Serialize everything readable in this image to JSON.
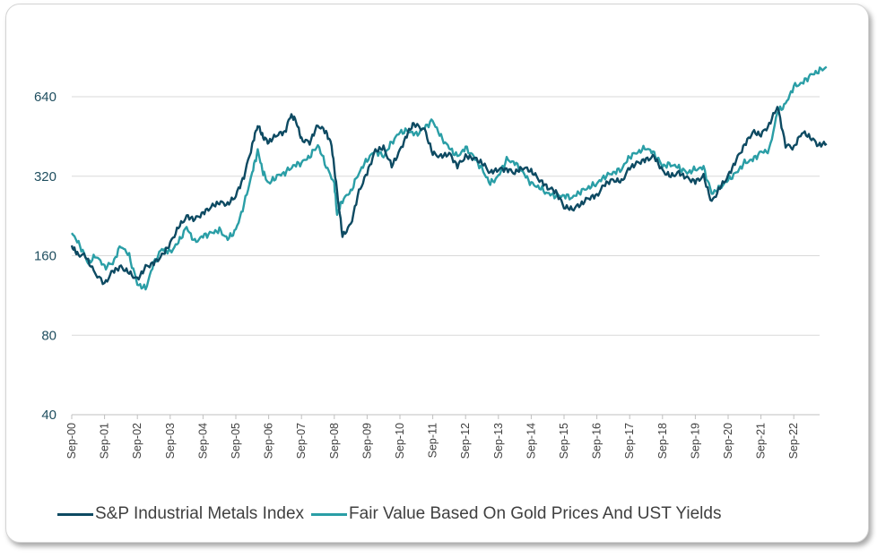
{
  "colors": {
    "series1": "#0d4a62",
    "series2": "#2a9ea6",
    "axis_text": "#1f4e5f",
    "grid": "#d9d9d9"
  },
  "chart_data": {
    "type": "line",
    "title": "",
    "xlabel": "",
    "ylabel": "",
    "y_scale": "log2",
    "ylim": [
      40,
      900
    ],
    "y_ticks": [
      "40",
      "80",
      "160",
      "320",
      "640"
    ],
    "y_tick_values": [
      40,
      80,
      160,
      320,
      640
    ],
    "x_ticks": [
      "Sep-00",
      "Sep-01",
      "Sep-02",
      "Sep-03",
      "Sep-04",
      "Sep-05",
      "Sep-06",
      "Sep-07",
      "Sep-08",
      "Sep-09",
      "Sep-10",
      "Sep-11",
      "Sep-12",
      "Sep-13",
      "Sep-14",
      "Sep-15",
      "Sep-16",
      "Sep-17",
      "Sep-18",
      "Sep-19",
      "Sep-20",
      "Sep-21",
      "Sep-22"
    ],
    "grid": "horizontal",
    "legend_position": "bottom",
    "series": [
      {
        "name": "S&P Industrial Metals Index",
        "points": [
          [
            "2000-09",
            175
          ],
          [
            "2000-11",
            162
          ],
          [
            "2001-02",
            160
          ],
          [
            "2001-05",
            140
          ],
          [
            "2001-09",
            125
          ],
          [
            "2001-12",
            140
          ],
          [
            "2002-03",
            145
          ],
          [
            "2002-06",
            138
          ],
          [
            "2002-09",
            130
          ],
          [
            "2002-12",
            145
          ],
          [
            "2003-03",
            150
          ],
          [
            "2003-06",
            160
          ],
          [
            "2003-09",
            178
          ],
          [
            "2003-12",
            205
          ],
          [
            "2004-03",
            225
          ],
          [
            "2004-06",
            220
          ],
          [
            "2004-09",
            232
          ],
          [
            "2004-12",
            245
          ],
          [
            "2005-03",
            255
          ],
          [
            "2005-06",
            250
          ],
          [
            "2005-09",
            270
          ],
          [
            "2005-12",
            320
          ],
          [
            "2006-03",
            420
          ],
          [
            "2006-05",
            500
          ],
          [
            "2006-07",
            450
          ],
          [
            "2006-09",
            430
          ],
          [
            "2006-12",
            460
          ],
          [
            "2007-03",
            470
          ],
          [
            "2007-05",
            545
          ],
          [
            "2007-07",
            520
          ],
          [
            "2007-09",
            440
          ],
          [
            "2007-12",
            430
          ],
          [
            "2008-03",
            500
          ],
          [
            "2008-06",
            470
          ],
          [
            "2008-08",
            420
          ],
          [
            "2008-10",
            280
          ],
          [
            "2008-12",
            190
          ],
          [
            "2009-03",
            210
          ],
          [
            "2009-06",
            280
          ],
          [
            "2009-09",
            330
          ],
          [
            "2009-12",
            400
          ],
          [
            "2010-03",
            410
          ],
          [
            "2010-06",
            350
          ],
          [
            "2010-09",
            400
          ],
          [
            "2010-12",
            470
          ],
          [
            "2011-02",
            505
          ],
          [
            "2011-06",
            480
          ],
          [
            "2011-09",
            390
          ],
          [
            "2011-12",
            380
          ],
          [
            "2012-03",
            390
          ],
          [
            "2012-06",
            350
          ],
          [
            "2012-09",
            380
          ],
          [
            "2012-12",
            375
          ],
          [
            "2013-03",
            360
          ],
          [
            "2013-06",
            330
          ],
          [
            "2013-09",
            340
          ],
          [
            "2013-12",
            340
          ],
          [
            "2014-03",
            330
          ],
          [
            "2014-06",
            345
          ],
          [
            "2014-09",
            335
          ],
          [
            "2014-12",
            310
          ],
          [
            "2015-03",
            290
          ],
          [
            "2015-06",
            280
          ],
          [
            "2015-09",
            245
          ],
          [
            "2015-12",
            240
          ],
          [
            "2016-03",
            250
          ],
          [
            "2016-06",
            265
          ],
          [
            "2016-09",
            270
          ],
          [
            "2016-12",
            300
          ],
          [
            "2017-03",
            310
          ],
          [
            "2017-06",
            305
          ],
          [
            "2017-09",
            345
          ],
          [
            "2017-12",
            360
          ],
          [
            "2018-03",
            370
          ],
          [
            "2018-06",
            380
          ],
          [
            "2018-09",
            335
          ],
          [
            "2018-12",
            320
          ],
          [
            "2019-03",
            330
          ],
          [
            "2019-06",
            315
          ],
          [
            "2019-09",
            305
          ],
          [
            "2019-12",
            320
          ],
          [
            "2020-03",
            255
          ],
          [
            "2020-06",
            290
          ],
          [
            "2020-09",
            320
          ],
          [
            "2020-12",
            370
          ],
          [
            "2021-03",
            420
          ],
          [
            "2021-06",
            470
          ],
          [
            "2021-09",
            460
          ],
          [
            "2021-12",
            500
          ],
          [
            "2022-03",
            590
          ],
          [
            "2022-06",
            420
          ],
          [
            "2022-09",
            410
          ],
          [
            "2022-12",
            470
          ],
          [
            "2023-03",
            450
          ],
          [
            "2023-06",
            420
          ],
          [
            "2023-09",
            425
          ]
        ]
      },
      {
        "name": "Fair Value Based On Gold Prices And UST Yields",
        "points": [
          [
            "2000-09",
            195
          ],
          [
            "2000-12",
            175
          ],
          [
            "2001-03",
            150
          ],
          [
            "2001-06",
            160
          ],
          [
            "2001-09",
            145
          ],
          [
            "2001-12",
            150
          ],
          [
            "2002-03",
            175
          ],
          [
            "2002-06",
            160
          ],
          [
            "2002-09",
            125
          ],
          [
            "2002-12",
            120
          ],
          [
            "2003-03",
            150
          ],
          [
            "2003-06",
            170
          ],
          [
            "2003-09",
            165
          ],
          [
            "2003-12",
            180
          ],
          [
            "2004-03",
            205
          ],
          [
            "2004-06",
            180
          ],
          [
            "2004-09",
            190
          ],
          [
            "2004-12",
            195
          ],
          [
            "2005-03",
            200
          ],
          [
            "2005-06",
            185
          ],
          [
            "2005-09",
            200
          ],
          [
            "2005-12",
            250
          ],
          [
            "2006-03",
            330
          ],
          [
            "2006-05",
            400
          ],
          [
            "2006-07",
            330
          ],
          [
            "2006-09",
            300
          ],
          [
            "2006-12",
            320
          ],
          [
            "2007-03",
            330
          ],
          [
            "2007-06",
            350
          ],
          [
            "2007-09",
            360
          ],
          [
            "2007-12",
            380
          ],
          [
            "2008-03",
            420
          ],
          [
            "2008-06",
            350
          ],
          [
            "2008-09",
            300
          ],
          [
            "2008-10",
            230
          ],
          [
            "2008-12",
            260
          ],
          [
            "2009-03",
            280
          ],
          [
            "2009-06",
            330
          ],
          [
            "2009-09",
            370
          ],
          [
            "2009-12",
            400
          ],
          [
            "2010-03",
            380
          ],
          [
            "2010-06",
            430
          ],
          [
            "2010-09",
            470
          ],
          [
            "2010-12",
            475
          ],
          [
            "2011-03",
            460
          ],
          [
            "2011-06",
            490
          ],
          [
            "2011-09",
            520
          ],
          [
            "2011-12",
            450
          ],
          [
            "2012-03",
            410
          ],
          [
            "2012-06",
            380
          ],
          [
            "2012-09",
            410
          ],
          [
            "2012-12",
            380
          ],
          [
            "2013-03",
            340
          ],
          [
            "2013-06",
            300
          ],
          [
            "2013-09",
            320
          ],
          [
            "2013-12",
            370
          ],
          [
            "2014-03",
            360
          ],
          [
            "2014-06",
            330
          ],
          [
            "2014-09",
            300
          ],
          [
            "2014-12",
            290
          ],
          [
            "2015-03",
            275
          ],
          [
            "2015-06",
            270
          ],
          [
            "2015-09",
            270
          ],
          [
            "2015-12",
            265
          ],
          [
            "2016-03",
            280
          ],
          [
            "2016-06",
            290
          ],
          [
            "2016-09",
            300
          ],
          [
            "2016-12",
            320
          ],
          [
            "2017-03",
            330
          ],
          [
            "2017-06",
            340
          ],
          [
            "2017-09",
            380
          ],
          [
            "2017-12",
            395
          ],
          [
            "2018-03",
            410
          ],
          [
            "2018-06",
            390
          ],
          [
            "2018-09",
            350
          ],
          [
            "2018-12",
            355
          ],
          [
            "2019-03",
            345
          ],
          [
            "2019-06",
            330
          ],
          [
            "2019-09",
            340
          ],
          [
            "2019-12",
            345
          ],
          [
            "2020-03",
            275
          ],
          [
            "2020-06",
            290
          ],
          [
            "2020-09",
            310
          ],
          [
            "2020-12",
            330
          ],
          [
            "2021-03",
            360
          ],
          [
            "2021-06",
            370
          ],
          [
            "2021-09",
            395
          ],
          [
            "2021-12",
            400
          ],
          [
            "2022-03",
            560
          ],
          [
            "2022-06",
            600
          ],
          [
            "2022-09",
            700
          ],
          [
            "2022-12",
            720
          ],
          [
            "2023-03",
            770
          ],
          [
            "2023-06",
            800
          ],
          [
            "2023-09",
            830
          ]
        ]
      }
    ]
  }
}
